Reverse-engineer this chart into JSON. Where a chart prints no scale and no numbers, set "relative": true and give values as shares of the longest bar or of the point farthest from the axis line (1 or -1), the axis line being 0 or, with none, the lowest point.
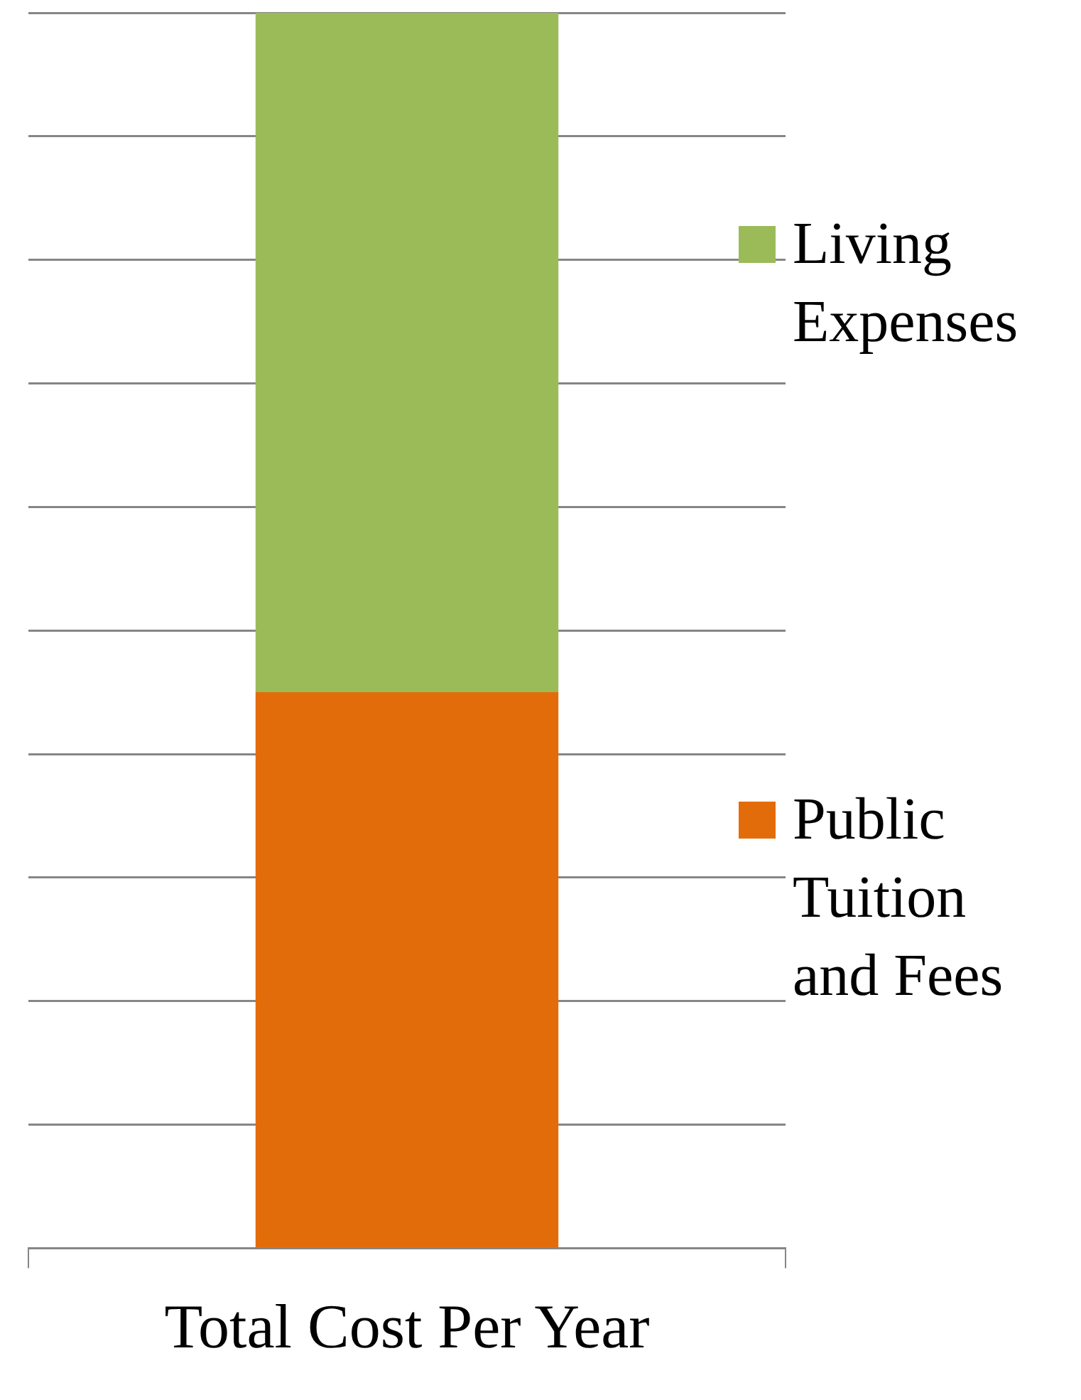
{
  "chart_data": {
    "type": "bar",
    "stacked": true,
    "relative": true,
    "categories": [
      "Total Cost Per Year"
    ],
    "series": [
      {
        "name": "Public Tuition and Fees",
        "color": "#e36c0a",
        "values": [
          0.45
        ]
      },
      {
        "name": "Living Expenses",
        "color": "#9bbb59",
        "values": [
          0.55
        ]
      }
    ],
    "grid": "y",
    "legend": "right"
  }
}
